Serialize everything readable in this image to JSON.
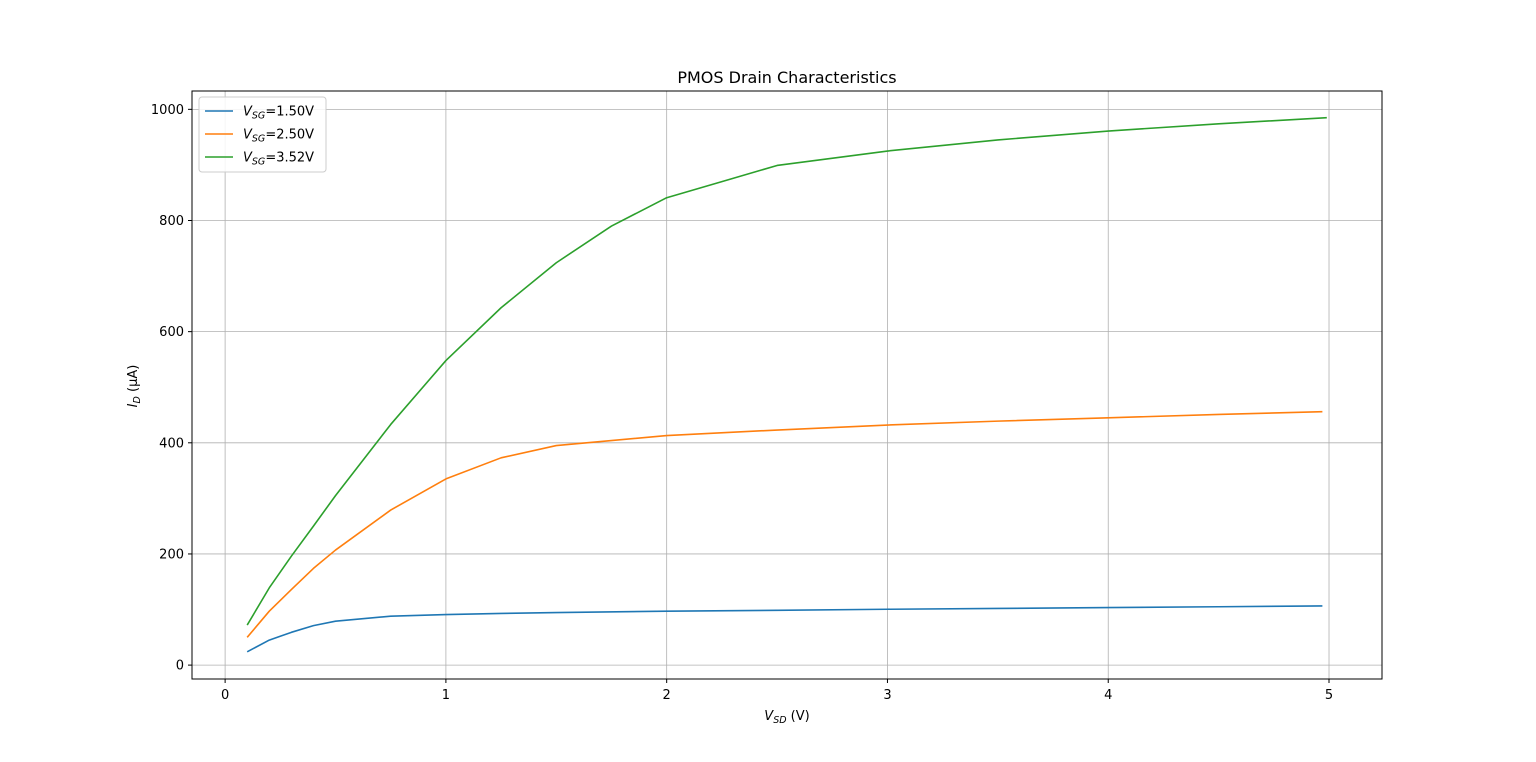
{
  "chart_data": {
    "type": "line",
    "title": "PMOS Drain Characteristics",
    "xlabel": {
      "main": "V",
      "sub": "SD",
      "unit": " (V)"
    },
    "ylabel": {
      "main": "I",
      "sub": "D",
      "unit": " (μA)"
    },
    "xlim": [
      -0.15,
      5.24
    ],
    "ylim": [
      -25,
      1033
    ],
    "xticks": [
      0,
      1,
      2,
      3,
      4,
      5
    ],
    "yticks": [
      0,
      200,
      400,
      600,
      800,
      1000
    ],
    "grid": true,
    "legend_position": "top-left",
    "series": [
      {
        "name": {
          "main": "V",
          "sub": "SG",
          "value": "=1.50V"
        },
        "color": "#1f77b4",
        "x": [
          0.1,
          0.2,
          0.3,
          0.4,
          0.5,
          0.75,
          1.0,
          1.25,
          1.5,
          2.0,
          2.5,
          3.0,
          3.5,
          4.0,
          4.5,
          4.97
        ],
        "y": [
          24,
          45,
          59,
          71,
          79,
          88,
          91,
          93,
          94.5,
          97,
          98.5,
          100.5,
          102,
          103.5,
          105,
          106.5
        ]
      },
      {
        "name": {
          "main": "V",
          "sub": "SG",
          "value": "=2.50V"
        },
        "color": "#ff7f0e",
        "x": [
          0.1,
          0.2,
          0.3,
          0.4,
          0.5,
          0.75,
          1.0,
          1.25,
          1.5,
          2.0,
          2.5,
          3.0,
          3.5,
          4.0,
          4.5,
          4.97
        ],
        "y": [
          50,
          97,
          136,
          174,
          207,
          279,
          335,
          373,
          395,
          413,
          423,
          432,
          439,
          445,
          451,
          456
        ]
      },
      {
        "name": {
          "main": "V",
          "sub": "SG",
          "value": "=3.52V"
        },
        "color": "#2ca02c",
        "x": [
          0.1,
          0.2,
          0.3,
          0.4,
          0.5,
          0.75,
          1.0,
          1.25,
          1.5,
          1.75,
          2.0,
          2.25,
          2.5,
          3.0,
          3.5,
          4.0,
          4.5,
          4.99
        ],
        "y": [
          72,
          139,
          196,
          250,
          305,
          433,
          548,
          643,
          724,
          790,
          841,
          870,
          899,
          925,
          945,
          961,
          974,
          985
        ]
      }
    ]
  }
}
